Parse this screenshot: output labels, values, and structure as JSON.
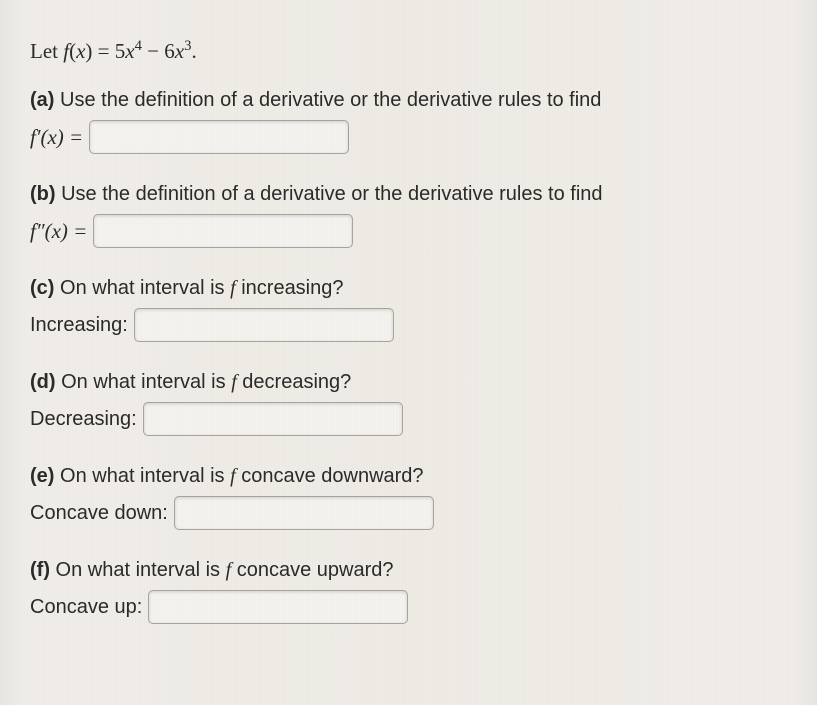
{
  "intro_html": "Let <span class='mathit'>f</span>(<span class='mathit'>x</span>) = 5<span class='mathit'>x</span><sup>4</sup> &minus; 6<span class='mathit'>x</span><sup>3</sup>.",
  "parts": {
    "a": {
      "label": "(a)",
      "prompt": "Use the definition of a derivative or the derivative rules to find",
      "answer_label_html": "<span class='mathit'>f&prime;</span>(<span class='mathit'>x</span>) =",
      "input_width": 260
    },
    "b": {
      "label": "(b)",
      "prompt": "Use the definition of a derivative or the derivative rules to find",
      "answer_label_html": "<span class='mathit'>f&Prime;</span>(<span class='mathit'>x</span>) =",
      "input_width": 260
    },
    "c": {
      "label": "(c)",
      "prompt_html": "On what interval is <span class='mathit'>f</span> increasing?",
      "answer_label": "Increasing:",
      "input_width": 260
    },
    "d": {
      "label": "(d)",
      "prompt_html": "On what interval is <span class='mathit'>f</span> decreasing?",
      "answer_label": "Decreasing:",
      "input_width": 260
    },
    "e": {
      "label": "(e)",
      "prompt_html": "On what interval is <span class='mathit'>f</span> concave downward?",
      "answer_label": "Concave down:",
      "input_width": 260
    },
    "f": {
      "label": "(f)",
      "prompt_html": "On what interval is <span class='mathit'>f</span> concave upward?",
      "answer_label": "Concave up:",
      "input_width": 260
    }
  }
}
